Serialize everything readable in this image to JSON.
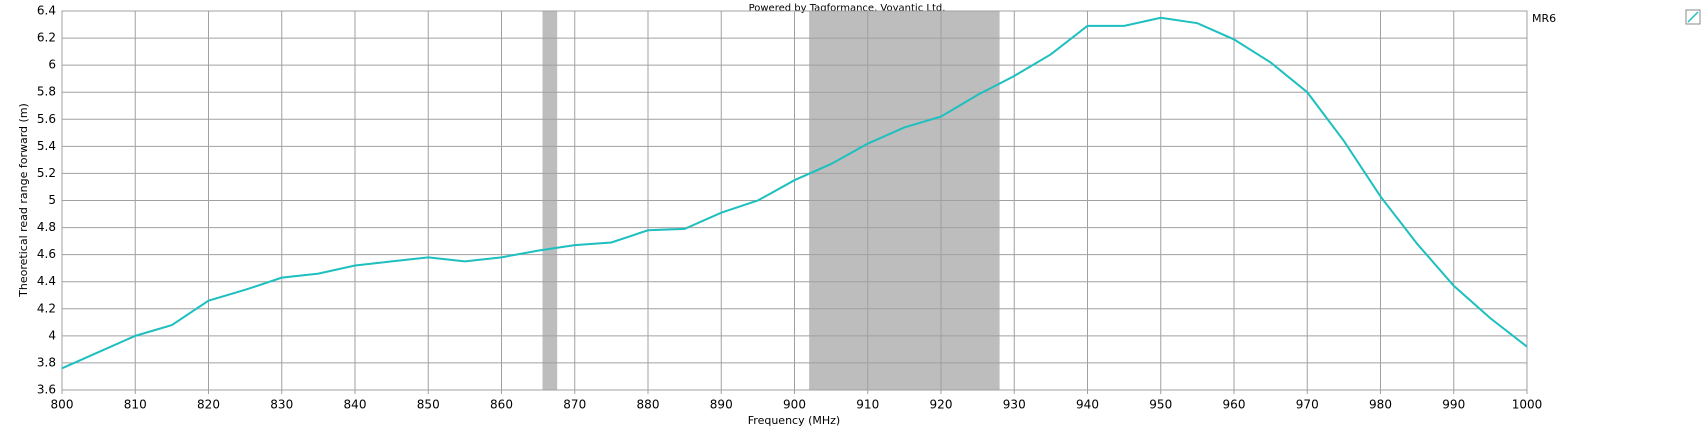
{
  "chart_data": {
    "type": "line",
    "title": "Powered by Tagformance, Voyantic Ltd.",
    "x_label": "Frequency (MHz)",
    "y_label": "Theoretical read range forward (m)",
    "x": [
      800,
      805,
      810,
      815,
      820,
      825,
      830,
      835,
      840,
      845,
      850,
      855,
      860,
      865,
      870,
      875,
      880,
      885,
      890,
      895,
      900,
      905,
      910,
      915,
      920,
      925,
      930,
      935,
      940,
      945,
      950,
      955,
      960,
      965,
      970,
      975,
      980,
      985,
      990,
      995,
      1000
    ],
    "series": [
      {
        "name": "MR6",
        "color": "#1ebfbf",
        "values": [
          3.76,
          3.88,
          4.0,
          4.08,
          4.26,
          4.34,
          4.43,
          4.46,
          4.52,
          4.55,
          4.58,
          4.55,
          4.58,
          4.63,
          4.67,
          4.69,
          4.78,
          4.79,
          4.91,
          5.0,
          5.15,
          5.27,
          5.42,
          5.54,
          5.62,
          5.78,
          5.92,
          6.08,
          6.29,
          6.29,
          6.35,
          6.31,
          6.19,
          6.02,
          5.8,
          5.44,
          5.03,
          4.68,
          4.37,
          4.13,
          3.92
        ]
      }
    ],
    "bands": [
      [
        865.6,
        867.6
      ],
      [
        902,
        928
      ]
    ],
    "band_color": "#bdbdbd",
    "xlim": [
      800,
      1000
    ],
    "ylim": [
      3.6,
      6.4
    ],
    "xticks": [
      800,
      810,
      820,
      830,
      840,
      850,
      860,
      870,
      880,
      890,
      900,
      910,
      920,
      930,
      940,
      950,
      960,
      970,
      980,
      990,
      1000
    ],
    "yticks": [
      3.6,
      3.8,
      4,
      4.2,
      4.4,
      4.6,
      4.8,
      5,
      5.2,
      5.4,
      5.6,
      5.8,
      6,
      6.2,
      6.4
    ],
    "grid": true
  }
}
